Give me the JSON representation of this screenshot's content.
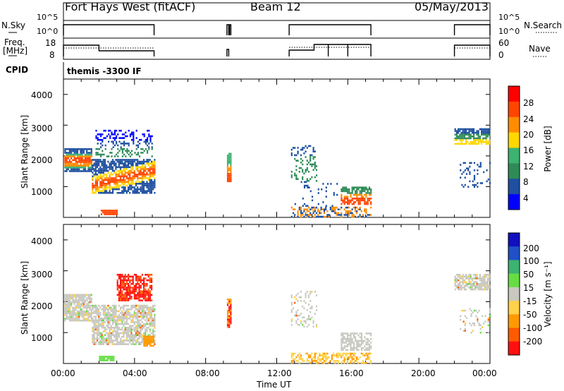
{
  "header": {
    "station": "Fort Hays West (fitACF)",
    "beam": "Beam 12",
    "date": "05/May/2013"
  },
  "aux": {
    "nsky_label": "N.Sky",
    "freq_label_1": "Freq.",
    "freq_label_2": "[MHz]",
    "cpid_label": "CPID",
    "nsearch_label": "N.Search",
    "nave_label": "Nave",
    "cpid_text": "themis -3300 IF",
    "nsky_ticks": [
      "10^5",
      "10^0"
    ],
    "nsearch_ticks": [
      "10^5",
      "10^0"
    ],
    "freq_ticks": [
      "18",
      "8"
    ],
    "nave_ticks": [
      "60",
      "0"
    ]
  },
  "power_panel": {
    "ylabel": "Slant Range [km]",
    "yticks": [
      "4000",
      "3000",
      "2000",
      "1000"
    ]
  },
  "velocity_panel": {
    "ylabel": "Slant Range [km]",
    "yticks": [
      "4000",
      "3000",
      "2000",
      "1000"
    ]
  },
  "colorbars": {
    "power_label": "Power [dB]",
    "power_ticks": [
      "28",
      "24",
      "20",
      "16",
      "12",
      "8",
      "4"
    ],
    "power_colors": [
      "#ff0000",
      "#ff4500",
      "#ff8c00",
      "#ffd700",
      "#3cb371",
      "#2e8b57",
      "#1e4fa0",
      "#0000ff"
    ],
    "velocity_label": "Velocity [m s⁻¹]",
    "velocity_ticks": [
      "200",
      "100",
      "50",
      "15",
      "-15",
      "-50",
      "-100",
      "-200"
    ],
    "velocity_colors": [
      "#1010c0",
      "#2050c8",
      "#3cb371",
      "#66dd44",
      "#c8c8c0",
      "#ffd24a",
      "#ff9a00",
      "#ff5a00",
      "#ff1010"
    ]
  },
  "xaxis": {
    "ticks": [
      "00:00",
      "04:00",
      "08:00",
      "12:00",
      "16:00",
      "20:00",
      "00:00"
    ],
    "label": "Time UT"
  },
  "chart_data": [
    {
      "type": "heatmap",
      "quantity": "Power",
      "xlabel": "Time UT",
      "ylabel": "Slant Range [km]",
      "xlim": [
        "00:00",
        "24:00"
      ],
      "ylim": [
        0,
        4500
      ],
      "colorbar": {
        "label": "Power [dB]",
        "ticks": [
          4,
          8,
          12,
          16,
          20,
          24,
          28
        ]
      },
      "features": [
        {
          "time": [
            "00:00",
            "01:30"
          ],
          "range_km": [
            1450,
            2300
          ],
          "power_db": [
            6,
            26
          ]
        },
        {
          "time": [
            "01:30",
            "05:00"
          ],
          "range_km": [
            700,
            2800
          ],
          "power_db": [
            6,
            26
          ]
        },
        {
          "time": [
            "09:15",
            "09:25"
          ],
          "range_km": [
            1200,
            2100
          ],
          "power_db": [
            10,
            26
          ]
        },
        {
          "time": [
            "12:45",
            "17:20"
          ],
          "range_km": [
            200,
            2400
          ],
          "power_db": [
            4,
            26
          ]
        },
        {
          "time": [
            "22:00",
            "24:00"
          ],
          "range_km": [
            1000,
            2900
          ],
          "power_db": [
            4,
            18
          ]
        }
      ]
    },
    {
      "type": "heatmap",
      "quantity": "Velocity",
      "xlabel": "Time UT",
      "ylabel": "Slant Range [km]",
      "xlim": [
        "00:00",
        "24:00"
      ],
      "ylim": [
        0,
        4500
      ],
      "colorbar": {
        "label": "Velocity [m s⁻¹]",
        "ticks": [
          -200,
          -100,
          -50,
          -15,
          15,
          50,
          100,
          200
        ]
      },
      "features": [
        {
          "time": [
            "00:00",
            "05:00"
          ],
          "range_km": [
            600,
            2300
          ],
          "velocity": [
            -15,
            15
          ]
        },
        {
          "time": [
            "03:00",
            "05:00"
          ],
          "range_km": [
            2000,
            2900
          ],
          "velocity": [
            -300,
            -150
          ]
        },
        {
          "time": [
            "04:30",
            "05:00"
          ],
          "range_km": [
            600,
            900
          ],
          "velocity": [
            -100,
            -50
          ]
        },
        {
          "time": [
            "09:15",
            "09:25"
          ],
          "range_km": [
            1200,
            2100
          ],
          "velocity": [
            -200,
            -50
          ]
        },
        {
          "time": [
            "12:45",
            "17:20"
          ],
          "range_km": [
            200,
            2400
          ],
          "velocity": [
            -50,
            15
          ]
        },
        {
          "time": [
            "22:00",
            "24:00"
          ],
          "range_km": [
            1000,
            2900
          ],
          "velocity": [
            -15,
            15
          ]
        }
      ]
    }
  ]
}
